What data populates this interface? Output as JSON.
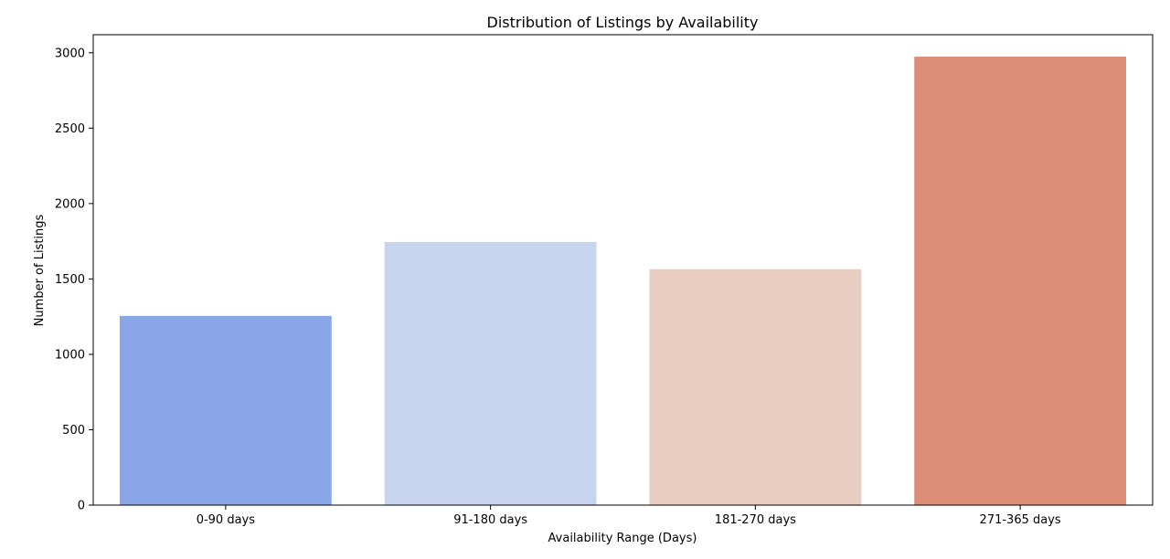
{
  "chart_data": {
    "type": "bar",
    "title": "Distribution of Listings by Availability",
    "xlabel": "Availability Range (Days)",
    "ylabel": "Number of Listings",
    "categories": [
      "0-90 days",
      "91-180 days",
      "181-270 days",
      "271-365 days"
    ],
    "values": [
      1255,
      1745,
      1565,
      2975
    ],
    "colors": [
      "#8aa6e8",
      "#c8d5ef",
      "#e8cdc0",
      "#dc8e77"
    ],
    "ylim": [
      0,
      3120
    ],
    "yticks": [
      0,
      500,
      1000,
      1500,
      2000,
      2500,
      3000
    ],
    "grid": false,
    "legend": "none"
  }
}
